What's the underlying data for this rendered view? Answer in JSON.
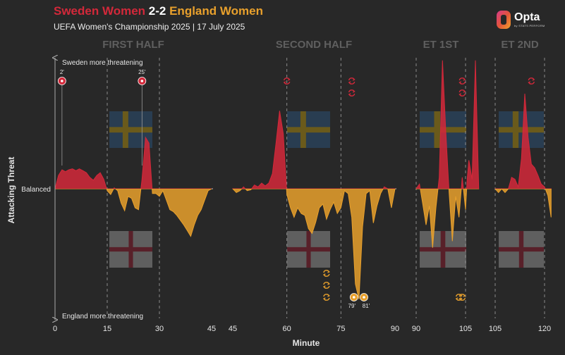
{
  "header": {
    "home_team": "Sweden Women",
    "score": "2-2",
    "away_team": "England Women",
    "subtitle": "UEFA Women's Championship 2025 | 17 July 2025",
    "logo": "Opta",
    "logo_sub": "by STATS PERFORM"
  },
  "colors": {
    "home": "#d3283a",
    "away": "#e8a02c",
    "background": "#282828"
  },
  "chart_data": {
    "type": "area",
    "xlabel": "Minute",
    "ylabel": "Attacking Threat",
    "y_top_label": "Sweden more threatening",
    "y_bottom_label": "England more threatening",
    "baseline_label": "Balanced",
    "periods": [
      {
        "name": "FIRST HALF",
        "range": [
          0,
          45
        ],
        "ticks": [
          0,
          15,
          30,
          45
        ],
        "dashed": [
          15,
          30
        ]
      },
      {
        "name": "SECOND HALF",
        "range": [
          45,
          90
        ],
        "ticks": [
          45,
          60,
          75,
          90
        ],
        "dashed": [
          60,
          75
        ]
      },
      {
        "name": "ET 1ST",
        "range": [
          90,
          105
        ],
        "ticks": [
          90,
          105
        ],
        "dashed": [
          90,
          105
        ]
      },
      {
        "name": "ET 2ND",
        "range": [
          105,
          120
        ],
        "ticks": [
          105,
          120
        ],
        "dashed": [
          105,
          120
        ]
      }
    ],
    "series": [
      {
        "period": 0,
        "points": [
          [
            0,
            0
          ],
          [
            1,
            0.14
          ],
          [
            2,
            0.2
          ],
          [
            3,
            0.18
          ],
          [
            4,
            0.2
          ],
          [
            5,
            0.21
          ],
          [
            6,
            0.19
          ],
          [
            7,
            0.21
          ],
          [
            8,
            0.19
          ],
          [
            9,
            0.17
          ],
          [
            10,
            0.12
          ],
          [
            11,
            0.09
          ],
          [
            12,
            0.14
          ],
          [
            13,
            0.17
          ],
          [
            14,
            0.1
          ],
          [
            15,
            -0.02
          ],
          [
            16,
            -0.06
          ],
          [
            17,
            0.01
          ],
          [
            18,
            -0.02
          ],
          [
            19,
            -0.15
          ],
          [
            20,
            -0.23
          ],
          [
            21,
            -0.08
          ],
          [
            22,
            -0.1
          ],
          [
            23,
            -0.2
          ],
          [
            24,
            -0.22
          ],
          [
            25,
            0.1
          ],
          [
            26,
            0.54
          ],
          [
            27,
            0.48
          ],
          [
            28,
            -0.05
          ],
          [
            29,
            -0.05
          ],
          [
            30,
            -0.08
          ],
          [
            31,
            -0.02
          ],
          [
            32,
            -0.12
          ],
          [
            33,
            -0.22
          ],
          [
            34,
            -0.24
          ],
          [
            35,
            -0.28
          ],
          [
            36,
            -0.33
          ],
          [
            37,
            -0.38
          ],
          [
            38,
            -0.44
          ],
          [
            39,
            -0.5
          ],
          [
            40,
            -0.38
          ],
          [
            41,
            -0.28
          ],
          [
            42,
            -0.22
          ],
          [
            43,
            -0.12
          ],
          [
            44,
            -0.02
          ],
          [
            45,
            0
          ]
        ]
      },
      {
        "period": 1,
        "points": [
          [
            45,
            0
          ],
          [
            46,
            -0.04
          ],
          [
            47,
            -0.02
          ],
          [
            48,
            0.02
          ],
          [
            49,
            -0.02
          ],
          [
            50,
            -0.01
          ],
          [
            51,
            0.04
          ],
          [
            52,
            0.02
          ],
          [
            53,
            0.06
          ],
          [
            54,
            0.03
          ],
          [
            55,
            0.06
          ],
          [
            56,
            0.16
          ],
          [
            57,
            0.48
          ],
          [
            58,
            0.82
          ],
          [
            59,
            0.58
          ],
          [
            60,
            -0.06
          ],
          [
            61,
            -0.2
          ],
          [
            62,
            -0.3
          ],
          [
            63,
            -0.2
          ],
          [
            64,
            -0.26
          ],
          [
            65,
            -0.28
          ],
          [
            66,
            -0.42
          ],
          [
            67,
            -0.47
          ],
          [
            68,
            -0.35
          ],
          [
            69,
            -0.2
          ],
          [
            70,
            -0.16
          ],
          [
            71,
            -0.32
          ],
          [
            72,
            -0.22
          ],
          [
            73,
            -0.14
          ],
          [
            74,
            -0.26
          ],
          [
            75,
            -0.2
          ],
          [
            76,
            -0.02
          ],
          [
            77,
            -0.05
          ],
          [
            78,
            -0.3
          ],
          [
            79,
            -1.0
          ],
          [
            80,
            -1.32
          ],
          [
            81,
            -0.4
          ],
          [
            82,
            -0.05
          ],
          [
            83,
            -0.02
          ],
          [
            84,
            -0.36
          ],
          [
            85,
            -0.18
          ],
          [
            86,
            -0.05
          ],
          [
            87,
            0.02
          ],
          [
            88,
            0.0
          ],
          [
            89,
            -0.2
          ],
          [
            90,
            0
          ]
        ]
      },
      {
        "period": 2,
        "points": [
          [
            90,
            0
          ],
          [
            91,
            0.05
          ],
          [
            92,
            -0.16
          ],
          [
            93,
            -0.38
          ],
          [
            94,
            -0.18
          ],
          [
            95,
            -0.62
          ],
          [
            96,
            -0.2
          ],
          [
            97,
            0.12
          ],
          [
            98,
            1.35
          ],
          [
            99,
            0.6
          ],
          [
            100,
            -0.04
          ],
          [
            101,
            -0.55
          ],
          [
            102,
            -0.08
          ],
          [
            103,
            -0.3
          ],
          [
            104,
            0.12
          ],
          [
            105,
            -0.22
          ],
          [
            105.5,
            0.1
          ],
          [
            106,
            0.3
          ],
          [
            107,
            0.1
          ],
          [
            108,
            1.35
          ],
          [
            109,
            0
          ]
        ]
      },
      {
        "period": 3,
        "points": [
          [
            105,
            0
          ],
          [
            106,
            -0.04
          ],
          [
            107,
            0.0
          ],
          [
            108,
            -0.04
          ],
          [
            109,
            0.0
          ],
          [
            110,
            0.12
          ],
          [
            111,
            0.1
          ],
          [
            112,
            0.02
          ],
          [
            113,
            0.32
          ],
          [
            114,
            1.0
          ],
          [
            115,
            0.54
          ],
          [
            116,
            0.26
          ],
          [
            117,
            0.22
          ],
          [
            118,
            0.14
          ],
          [
            119,
            0.05
          ],
          [
            120,
            0.02
          ],
          [
            121,
            -0.07
          ],
          [
            122,
            -0.3
          ]
        ]
      }
    ],
    "goals": [
      {
        "minute": 2,
        "team": "Sweden",
        "label": "2'"
      },
      {
        "minute": 25,
        "team": "Sweden",
        "label": "25'"
      },
      {
        "minute": 79,
        "team": "England",
        "label": "79'"
      },
      {
        "minute": 81,
        "team": "England",
        "label": "81'"
      }
    ],
    "substitutions": [
      {
        "minute": 60,
        "team": "Sweden",
        "row": 0
      },
      {
        "minute": 78,
        "team": "Sweden",
        "row": 0
      },
      {
        "minute": 78,
        "team": "Sweden",
        "row": 1
      },
      {
        "minute": 104,
        "team": "Sweden",
        "row": 0
      },
      {
        "minute": 104,
        "team": "Sweden",
        "row": 1
      },
      {
        "minute": 116,
        "team": "Sweden",
        "row": 0
      },
      {
        "minute": 71,
        "team": "England",
        "row": 0
      },
      {
        "minute": 71,
        "team": "England",
        "row": 1
      },
      {
        "minute": 71,
        "team": "England",
        "row": 2
      },
      {
        "minute": 103,
        "team": "England",
        "row": 2
      },
      {
        "minute": 104,
        "team": "England",
        "row": 2
      }
    ]
  }
}
